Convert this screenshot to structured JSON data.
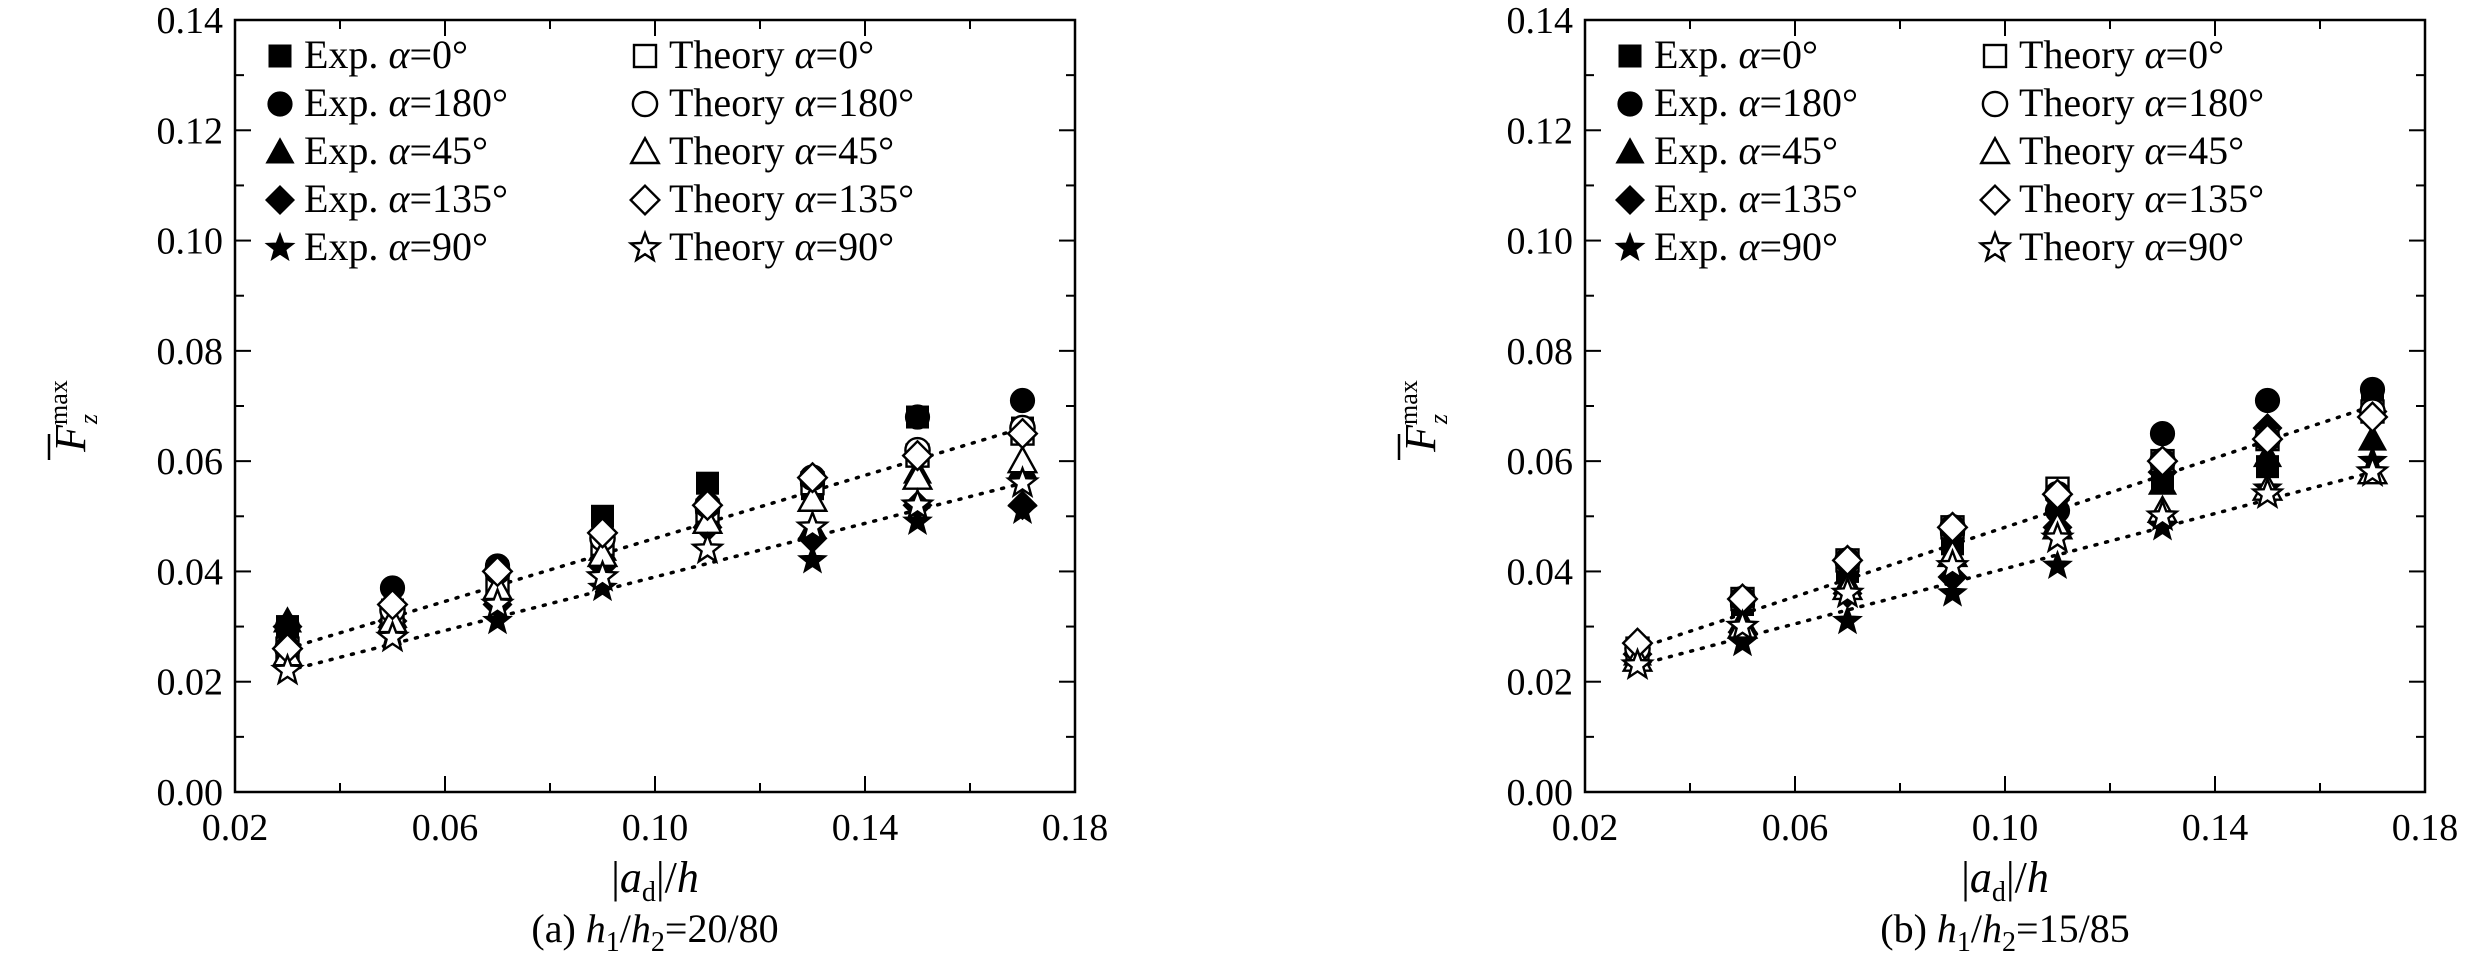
{
  "chart_data": [
    {
      "type": "scatter",
      "panel": "a",
      "caption": {
        "prefix": "(a) ",
        "h1": "h",
        "sub1": "1",
        "slash": "/",
        "h2": "h",
        "sub2": "2",
        "ratio": "=20/80"
      },
      "xlabel": {
        "bar_left": "|",
        "a": "a",
        "sub": "d",
        "bar_right": "|/",
        "h": "h"
      },
      "ylabel": {
        "F": "F",
        "sub": "z",
        "sup": "max"
      },
      "xlim": [
        0.02,
        0.18
      ],
      "ylim": [
        0.0,
        0.14
      ],
      "xticks": [
        "0.02",
        "0.06",
        "0.10",
        "0.14",
        "0.18"
      ],
      "xtick_values": [
        0.02,
        0.06,
        0.1,
        0.14,
        0.18
      ],
      "yticks": [
        "0.00",
        "0.02",
        "0.04",
        "0.06",
        "0.08",
        "0.10",
        "0.12",
        "0.14"
      ],
      "ytick_values": [
        0.0,
        0.02,
        0.04,
        0.06,
        0.08,
        0.1,
        0.12,
        0.14
      ],
      "x": [
        0.03,
        0.05,
        0.07,
        0.09,
        0.11,
        0.13,
        0.15,
        0.17
      ],
      "series": [
        {
          "name": "Exp. α=0°",
          "name_prefix": "Exp. ",
          "name_alpha": "α",
          "name_suffix": "=0°",
          "marker": "square",
          "filled": true,
          "values": [
            0.03,
            0.033,
            0.04,
            0.05,
            0.056,
            0.055,
            0.068,
            0.066
          ]
        },
        {
          "name": "Exp. α=180°",
          "name_prefix": "Exp. ",
          "name_alpha": "α",
          "name_suffix": "=180°",
          "marker": "circle",
          "filled": true,
          "values": [
            0.03,
            0.037,
            0.041,
            0.046,
            0.051,
            0.056,
            0.068,
            0.071
          ]
        },
        {
          "name": "Exp. α=45°",
          "name_prefix": "Exp. ",
          "name_alpha": "α",
          "name_suffix": "=45°",
          "marker": "triangle",
          "filled": true,
          "values": [
            0.031,
            0.032,
            0.036,
            0.044,
            0.05,
            0.048,
            0.058,
            0.059
          ]
        },
        {
          "name": "Exp. α=135°",
          "name_prefix": "Exp. ",
          "name_alpha": "α",
          "name_suffix": "=135°",
          "marker": "diamond",
          "filled": true,
          "values": [
            0.03,
            0.031,
            0.034,
            0.041,
            0.048,
            0.046,
            0.052,
            0.052
          ]
        },
        {
          "name": "Exp. α=90°",
          "name_prefix": "Exp. ",
          "name_alpha": "α",
          "name_suffix": "=90°",
          "marker": "star",
          "filled": true,
          "values": [
            0.025,
            0.029,
            0.031,
            0.037,
            0.044,
            0.042,
            0.049,
            0.051
          ]
        },
        {
          "name": "Theory α=0°",
          "name_prefix": "Theory ",
          "name_alpha": "α",
          "name_suffix": "=0°",
          "marker": "square",
          "filled": false,
          "values": [
            0.026,
            0.032,
            0.038,
            0.045,
            0.051,
            0.056,
            0.061,
            0.065
          ]
        },
        {
          "name": "Theory α=180°",
          "name_prefix": "Theory ",
          "name_alpha": "α",
          "name_suffix": "=180°",
          "marker": "circle",
          "filled": false,
          "values": [
            0.026,
            0.033,
            0.04,
            0.046,
            0.052,
            0.057,
            0.062,
            0.066
          ]
        },
        {
          "name": "Theory α=45°",
          "name_prefix": "Theory ",
          "name_alpha": "α",
          "name_suffix": "=45°",
          "marker": "triangle",
          "filled": false,
          "values": [
            0.025,
            0.031,
            0.037,
            0.043,
            0.049,
            0.053,
            0.057,
            0.06
          ]
        },
        {
          "name": "Theory α=135°",
          "name_prefix": "Theory ",
          "name_alpha": "α",
          "name_suffix": "=135°",
          "marker": "diamond",
          "filled": false,
          "values": [
            0.026,
            0.034,
            0.04,
            0.047,
            0.052,
            0.057,
            0.061,
            0.065
          ]
        },
        {
          "name": "Theory α=90°",
          "name_prefix": "Theory ",
          "name_alpha": "α",
          "name_suffix": "=90°",
          "marker": "star",
          "filled": false,
          "values": [
            0.022,
            0.028,
            0.034,
            0.039,
            0.044,
            0.048,
            0.052,
            0.056
          ]
        }
      ],
      "trend_lines": [
        {
          "x": [
            0.03,
            0.17
          ],
          "y": [
            0.026,
            0.066
          ]
        },
        {
          "x": [
            0.03,
            0.17
          ],
          "y": [
            0.022,
            0.056
          ]
        }
      ],
      "legend": "top-left, two columns",
      "grid": false
    },
    {
      "type": "scatter",
      "panel": "b",
      "caption": {
        "prefix": "(b) ",
        "h1": "h",
        "sub1": "1",
        "slash": "/",
        "h2": "h",
        "sub2": "2",
        "ratio": "=15/85"
      },
      "xlabel": {
        "bar_left": "|",
        "a": "a",
        "sub": "d",
        "bar_right": "|/",
        "h": "h"
      },
      "ylabel": {
        "F": "F",
        "sub": "z",
        "sup": "max"
      },
      "xlim": [
        0.02,
        0.18
      ],
      "ylim": [
        0.0,
        0.14
      ],
      "xticks": [
        "0.02",
        "0.06",
        "0.10",
        "0.14",
        "0.18"
      ],
      "xtick_values": [
        0.02,
        0.06,
        0.1,
        0.14,
        0.18
      ],
      "yticks": [
        "0.00",
        "0.02",
        "0.04",
        "0.06",
        "0.08",
        "0.10",
        "0.12",
        "0.14"
      ],
      "ytick_values": [
        0.0,
        0.02,
        0.04,
        0.06,
        0.08,
        0.1,
        0.12,
        0.14
      ],
      "x": [
        0.03,
        0.05,
        0.07,
        0.09,
        0.11,
        0.13,
        0.15,
        0.17
      ],
      "series": [
        {
          "name": "Exp. α=0°",
          "name_prefix": "Exp. ",
          "name_alpha": "α",
          "name_suffix": "=0°",
          "marker": "square",
          "filled": true,
          "values": [
            0.025,
            0.034,
            0.04,
            0.045,
            0.055,
            0.057,
            0.059,
            0.07
          ]
        },
        {
          "name": "Exp. α=180°",
          "name_prefix": "Exp. ",
          "name_alpha": "α",
          "name_suffix": "=180°",
          "marker": "circle",
          "filled": true,
          "values": [
            0.026,
            0.034,
            0.042,
            0.047,
            0.051,
            0.065,
            0.071,
            0.073
          ]
        },
        {
          "name": "Exp. α=45°",
          "name_prefix": "Exp. ",
          "name_alpha": "α",
          "name_suffix": "=45°",
          "marker": "triangle",
          "filled": true,
          "values": [
            0.025,
            0.031,
            0.038,
            0.043,
            0.049,
            0.056,
            0.061,
            0.064
          ]
        },
        {
          "name": "Exp. α=135°",
          "name_prefix": "Exp. ",
          "name_alpha": "α",
          "name_suffix": "=135°",
          "marker": "diamond",
          "filled": true,
          "values": [
            0.025,
            0.029,
            0.036,
            0.039,
            0.048,
            0.058,
            0.066,
            0.069
          ]
        },
        {
          "name": "Exp. α=90°",
          "name_prefix": "Exp. ",
          "name_alpha": "α",
          "name_suffix": "=90°",
          "marker": "star",
          "filled": true,
          "values": [
            0.023,
            0.027,
            0.031,
            0.036,
            0.041,
            0.048,
            0.055,
            0.06
          ]
        },
        {
          "name": "Theory α=0°",
          "name_prefix": "Theory ",
          "name_alpha": "α",
          "name_suffix": "=0°",
          "marker": "square",
          "filled": false,
          "values": [
            0.026,
            0.035,
            0.042,
            0.048,
            0.055,
            0.06,
            0.064,
            0.069
          ]
        },
        {
          "name": "Theory α=180°",
          "name_prefix": "Theory ",
          "name_alpha": "α",
          "name_suffix": "=180°",
          "marker": "circle",
          "filled": false,
          "values": [
            0.026,
            0.035,
            0.042,
            0.048,
            0.054,
            0.06,
            0.064,
            0.069
          ]
        },
        {
          "name": "Theory α=45°",
          "name_prefix": "Theory ",
          "name_alpha": "α",
          "name_suffix": "=45°",
          "marker": "triangle",
          "filled": false,
          "values": [
            0.024,
            0.03,
            0.037,
            0.043,
            0.048,
            0.051,
            0.055,
            0.058
          ]
        },
        {
          "name": "Theory α=135°",
          "name_prefix": "Theory ",
          "name_alpha": "α",
          "name_suffix": "=135°",
          "marker": "diamond",
          "filled": false,
          "values": [
            0.027,
            0.035,
            0.042,
            0.048,
            0.054,
            0.06,
            0.064,
            0.068
          ]
        },
        {
          "name": "Theory α=90°",
          "name_prefix": "Theory ",
          "name_alpha": "α",
          "name_suffix": "=90°",
          "marker": "star",
          "filled": false,
          "values": [
            0.023,
            0.03,
            0.036,
            0.041,
            0.046,
            0.05,
            0.054,
            0.058
          ]
        }
      ],
      "trend_lines": [
        {
          "x": [
            0.03,
            0.17
          ],
          "y": [
            0.026,
            0.07
          ]
        },
        {
          "x": [
            0.03,
            0.17
          ],
          "y": [
            0.023,
            0.058
          ]
        }
      ],
      "legend": "top-left, two columns",
      "grid": false
    }
  ]
}
